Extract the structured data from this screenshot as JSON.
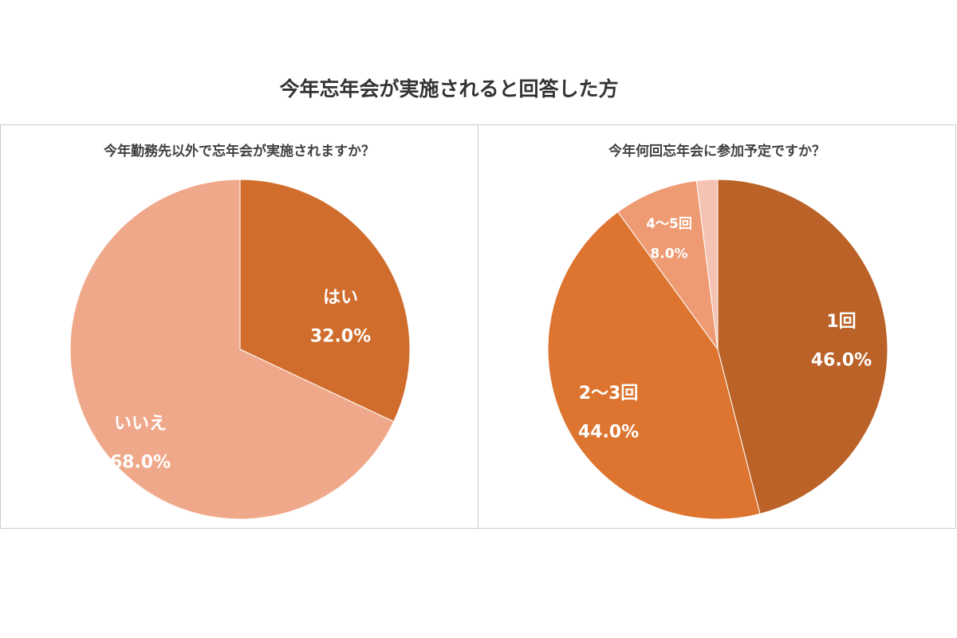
{
  "title": "今年忘年会が実施されると回答した方",
  "chart_data": [
    {
      "type": "pie",
      "title": "今年勤務先以外で忘年会が実施されますか？",
      "slices": [
        {
          "label": "はい",
          "value": 32.0,
          "display": "32.0%",
          "color": "#D06D2D"
        },
        {
          "label": "いいえ",
          "value": 68.0,
          "display": "68.0%",
          "color": "#F0A88A"
        }
      ],
      "start": "12 o'clock",
      "direction": "clockwise"
    },
    {
      "type": "pie",
      "title": "今年何回忘年会に参加予定ですか？",
      "slices": [
        {
          "label": "1回",
          "value": 46.0,
          "display": "46.0%",
          "color": "#BA6227"
        },
        {
          "label": "2〜3回",
          "value": 44.0,
          "display": "44.0%",
          "color": "#DD742F"
        },
        {
          "label": "4〜5回",
          "value": 8.0,
          "display": "8.0%",
          "color": "#EE9A72"
        },
        {
          "label": "",
          "value": 2.0,
          "display": "",
          "color": "#F5C3B3"
        }
      ],
      "start": "12 o'clock",
      "direction": "clockwise"
    }
  ]
}
